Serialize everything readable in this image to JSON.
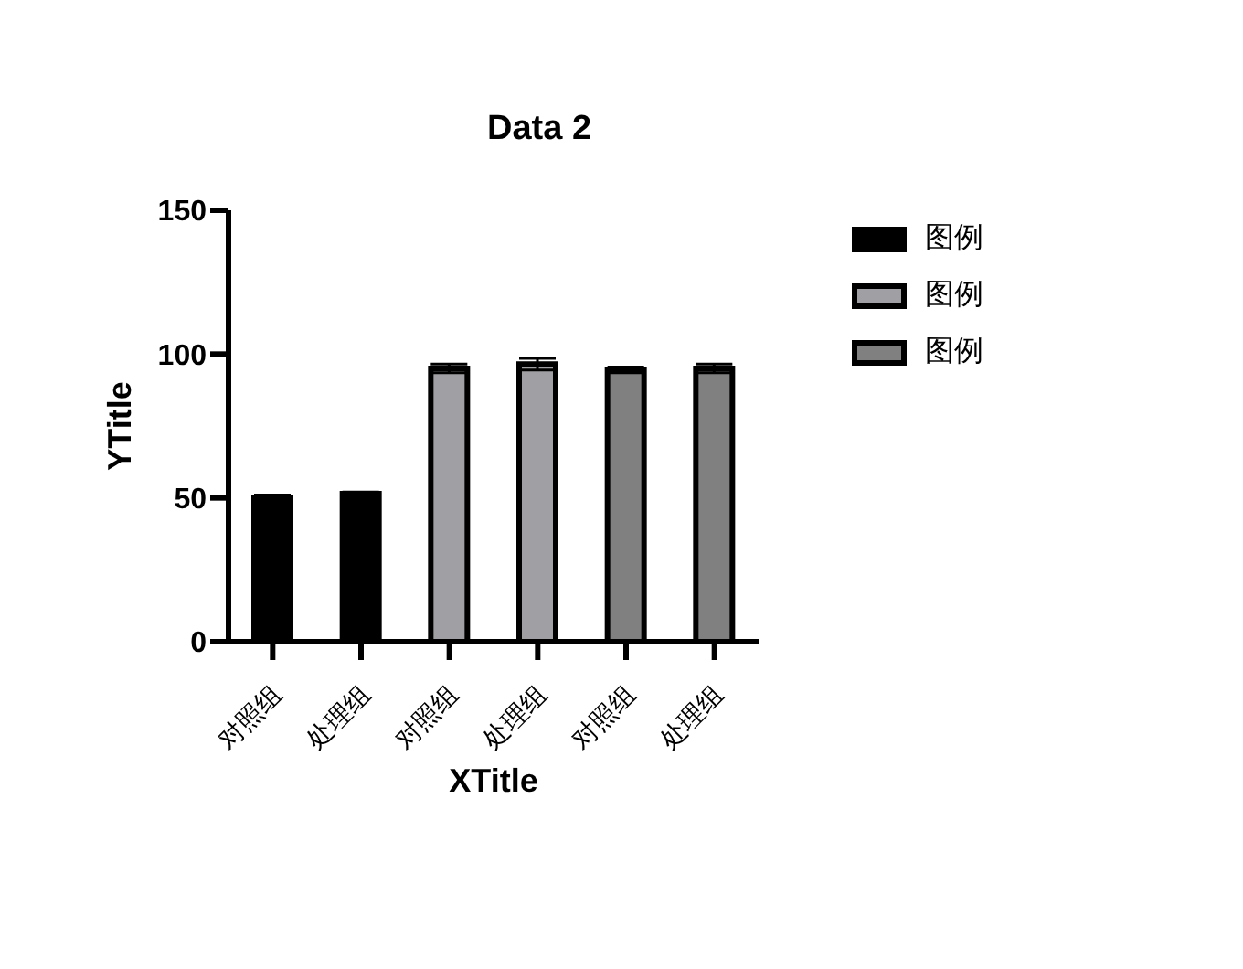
{
  "chart_data": {
    "type": "bar",
    "title": "Data 2",
    "xlabel": "XTitle",
    "ylabel": "YTitle",
    "categories": [
      "对照组",
      "处理组",
      "对照组",
      "处理组",
      "对照组",
      "处理组"
    ],
    "series": [
      {
        "name": "图例",
        "color": "#000000",
        "values": [
          50,
          51.5,
          null,
          null,
          null,
          null
        ],
        "errors": [
          1,
          0.5,
          null,
          null,
          null,
          null
        ]
      },
      {
        "name": "图例",
        "color": "#a0a0a4",
        "values": [
          null,
          null,
          95,
          96.5,
          null,
          null
        ],
        "errors": [
          null,
          null,
          1.5,
          2,
          null,
          null
        ]
      },
      {
        "name": "图例",
        "color": "#808080",
        "values": [
          null,
          null,
          null,
          null,
          94.5,
          95
        ],
        "errors": [
          null,
          null,
          null,
          null,
          1,
          1.5
        ]
      }
    ],
    "ylim": [
      0,
      150
    ],
    "yticks": [
      0,
      50,
      100,
      150
    ],
    "legend": "top right"
  }
}
